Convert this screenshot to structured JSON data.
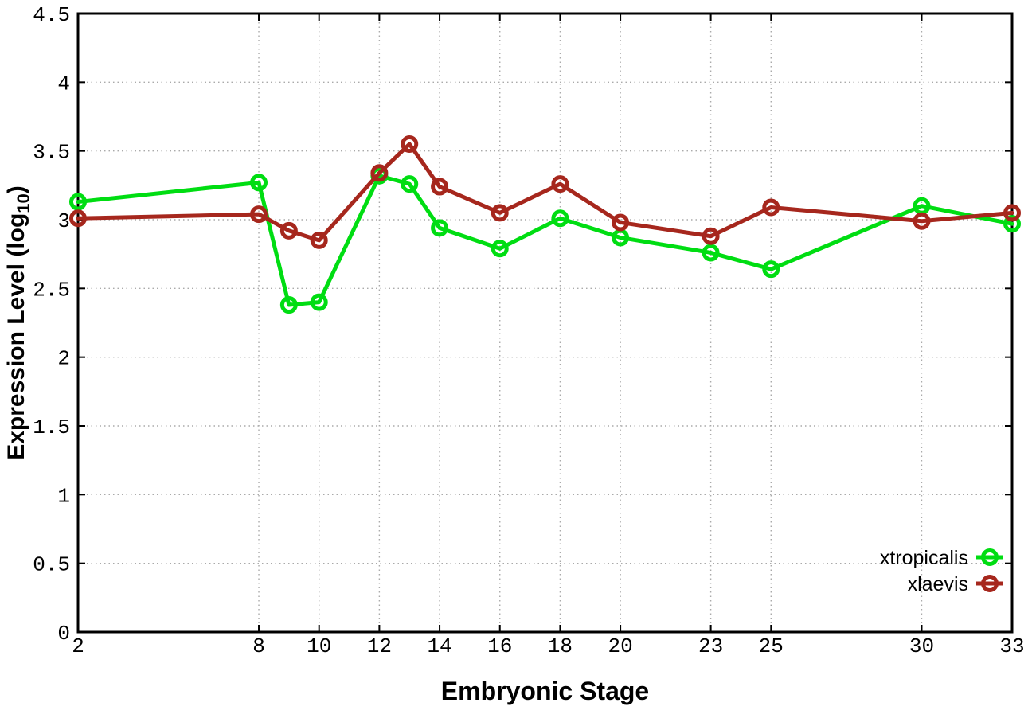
{
  "chart_data": {
    "type": "line",
    "title": "",
    "xlabel": "Embryonic Stage",
    "ylabel": {
      "pre": "Expression Level (log",
      "sub": "10",
      "post": ")"
    },
    "x_axis": {
      "range": [
        2,
        33
      ],
      "ticks": [
        2,
        8,
        10,
        12,
        14,
        16,
        18,
        20,
        23,
        25,
        30,
        33
      ],
      "labels": [
        "2",
        "8",
        "10",
        "12",
        "14",
        "16",
        "18",
        "20",
        "23",
        "25",
        "30",
        "33"
      ]
    },
    "y_axis": {
      "range": [
        0,
        4.5
      ],
      "ticks": [
        0,
        0.5,
        1,
        1.5,
        2,
        2.5,
        3,
        3.5,
        4,
        4.5
      ],
      "labels": [
        "0",
        "0.5",
        "1",
        "1.5",
        "2",
        "2.5",
        "3",
        "3.5",
        "4",
        "4.5"
      ]
    },
    "grid": "dotted",
    "legend": {
      "position": "bottom-right-inside"
    },
    "x": [
      2,
      8,
      9,
      10,
      12,
      13,
      14,
      16,
      18,
      20,
      23,
      25,
      30,
      33
    ],
    "series": [
      {
        "name": "xtropicalis",
        "color": "#00dd12",
        "marker": "open-circle",
        "values": [
          3.13,
          3.27,
          2.38,
          2.4,
          3.32,
          3.26,
          2.94,
          2.79,
          3.01,
          2.87,
          2.76,
          2.64,
          3.1,
          2.97
        ]
      },
      {
        "name": "xlaevis",
        "color": "#a6271d",
        "marker": "open-circle",
        "values": [
          3.01,
          3.04,
          2.92,
          2.85,
          3.34,
          3.55,
          3.24,
          3.05,
          3.26,
          2.98,
          2.88,
          3.09,
          2.99,
          3.05
        ]
      }
    ],
    "colors": {
      "background": "#ffffff",
      "border": "#000000",
      "grid": "#aaaaaa"
    }
  }
}
